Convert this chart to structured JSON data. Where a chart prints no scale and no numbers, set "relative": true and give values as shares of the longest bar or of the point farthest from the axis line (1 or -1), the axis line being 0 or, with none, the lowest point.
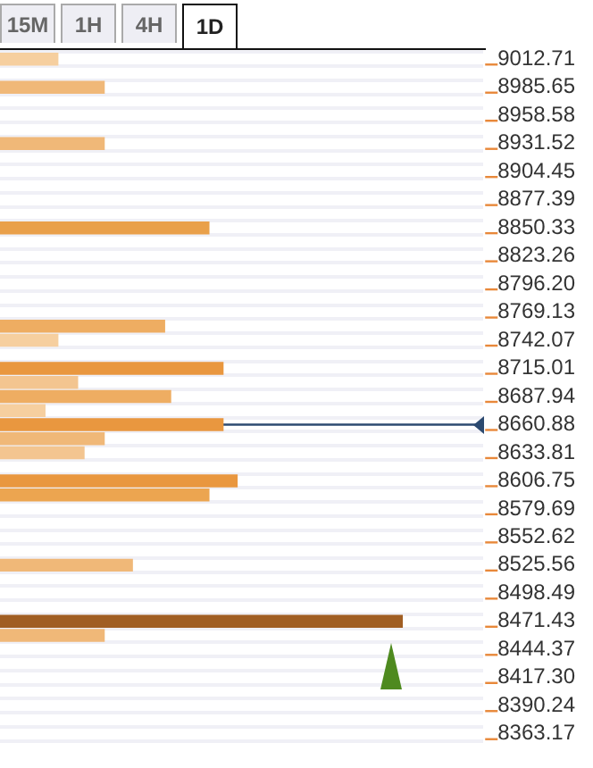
{
  "chart_data": {
    "type": "bar",
    "orientation": "horizontal",
    "relative": true,
    "grid": "y",
    "legend": false,
    "annotations": [
      "15M",
      "1H",
      "4H",
      "1D"
    ],
    "categories": [
      "9012.71",
      null,
      "8985.65",
      null,
      "8958.58",
      null,
      "8931.52",
      null,
      "8904.45",
      null,
      "8877.39",
      null,
      "8850.33",
      null,
      "8823.26",
      null,
      "8796.20",
      null,
      "8769.13",
      null,
      "8742.07",
      null,
      "8715.01",
      null,
      "8687.94",
      null,
      "8660.88",
      null,
      "8633.81",
      null,
      "8606.75",
      null,
      "8579.69",
      null,
      "8552.62",
      null,
      "8525.56",
      null,
      "8498.49",
      null,
      "8471.43",
      null,
      "8444.37",
      null,
      "8417.30",
      null,
      "8390.24",
      null,
      "8363.17"
    ],
    "values": [
      0.145,
      null,
      0.26,
      null,
      null,
      null,
      0.26,
      null,
      null,
      null,
      null,
      null,
      0.52,
      null,
      null,
      null,
      null,
      null,
      null,
      0.41,
      0.145,
      null,
      0.555,
      0.194,
      0.425,
      0.113,
      0.555,
      0.26,
      0.21,
      null,
      0.59,
      0.52,
      null,
      null,
      null,
      null,
      0.33,
      null,
      null,
      null,
      1,
      0.26,
      null,
      null,
      null,
      null,
      null,
      null,
      null
    ],
    "colors": [
      "#f6cf9f",
      null,
      "#f0b878",
      null,
      null,
      null,
      "#f0b878",
      null,
      null,
      null,
      null,
      null,
      "#e9a04a",
      null,
      null,
      null,
      null,
      null,
      null,
      "#eead62",
      "#f6cf9f",
      null,
      "#e9973f",
      "#f3c590",
      "#eead62",
      "#f6cf9f",
      "#e9973f",
      "#f0b878",
      "#f3c590",
      null,
      "#e9973f",
      "#eca550",
      null,
      null,
      null,
      null,
      "#f0b878",
      null,
      null,
      null,
      "#a05e23",
      "#f0b878",
      null,
      null,
      null,
      null,
      null,
      null,
      null
    ],
    "ref_lines": [
      {
        "axis": "y",
        "value": "8660.88",
        "color": "#2c4a70"
      }
    ]
  }
}
